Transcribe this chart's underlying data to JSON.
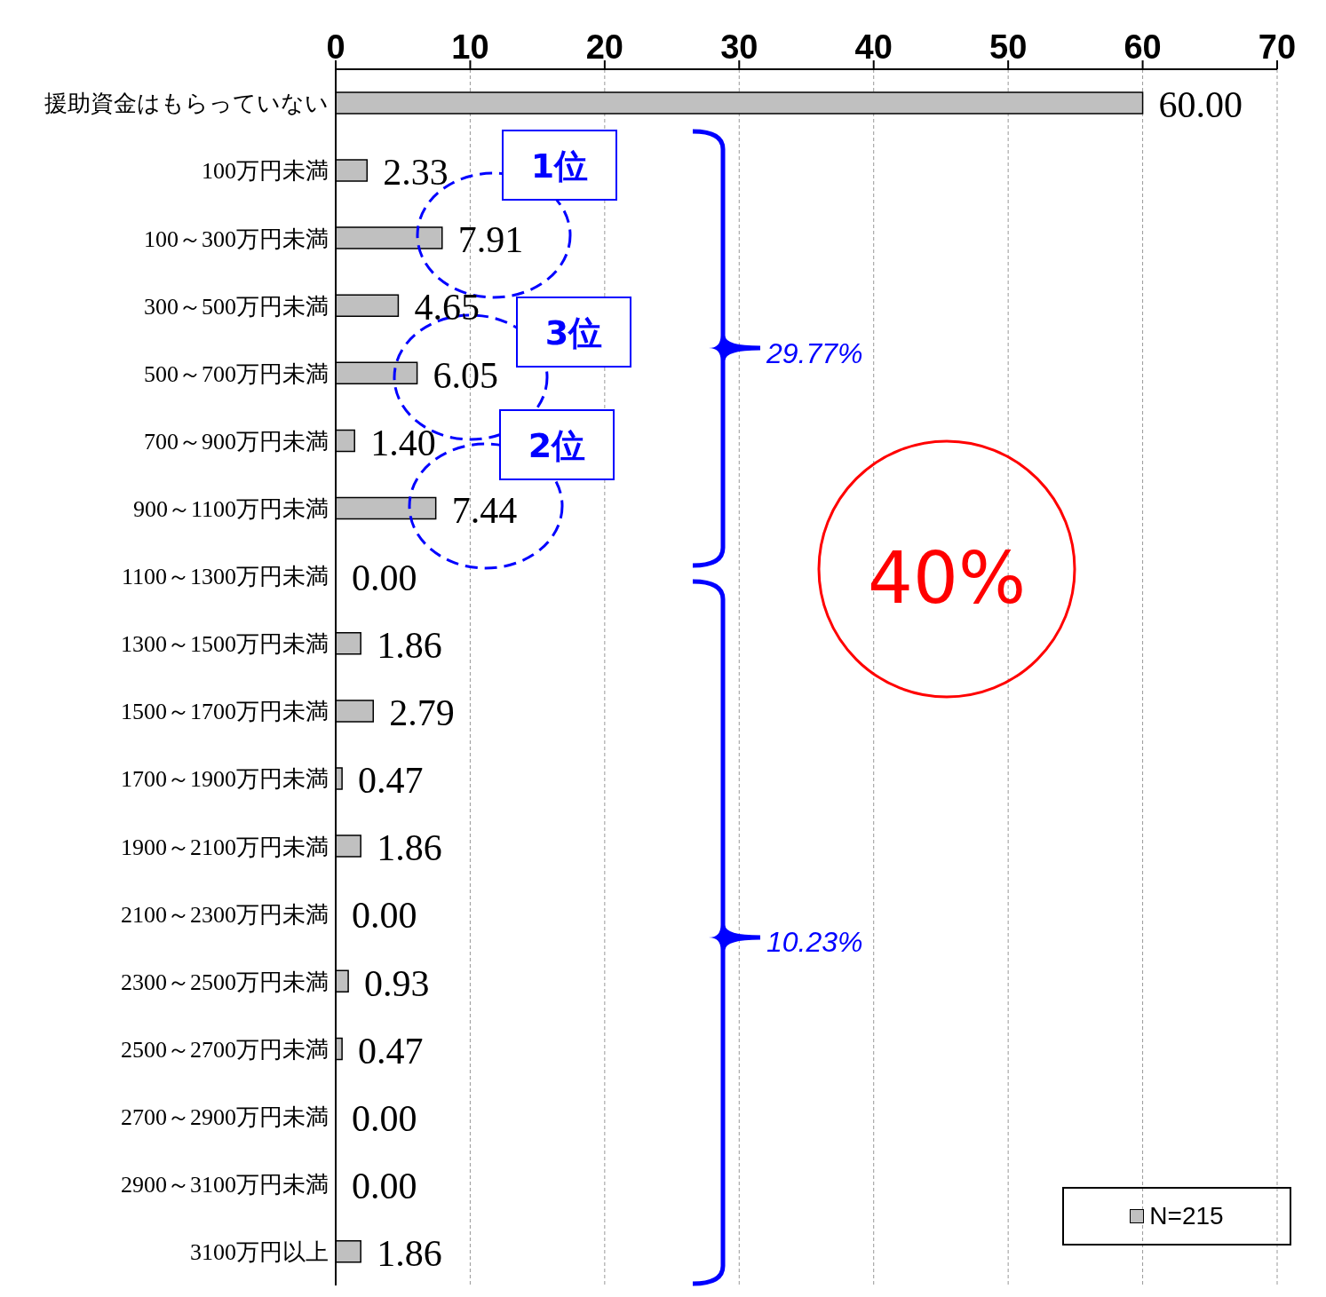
{
  "chart_data": {
    "type": "bar",
    "orientation": "horizontal",
    "categories": [
      "援助資金はもらっていない",
      "100万円未満",
      "100～300万円未満",
      "300～500万円未満",
      "500～700万円未満",
      "700～900万円未満",
      "900～1100万円未満",
      "1100～1300万円未満",
      "1300～1500万円未満",
      "1500～1700万円未満",
      "1700～1900万円未満",
      "1900～2100万円未満",
      "2100～2300万円未満",
      "2300～2500万円未満",
      "2500～2700万円未満",
      "2700～2900万円未満",
      "2900～3100万円未満",
      "3100万円以上"
    ],
    "series": [
      {
        "name": "N=215",
        "color": "#c0c0c0",
        "values": [
          60,
          2.33,
          7.91,
          4.65,
          6.05,
          1.4,
          7.44,
          0,
          1.86,
          2.79,
          0.47,
          1.86,
          0,
          0.93,
          0.47,
          0,
          0,
          1.86
        ],
        "value_labels": [
          "60.00",
          "2.33",
          "7.91",
          "4.65",
          "6.05",
          "1.40",
          "7.44",
          "0.00",
          "1.86",
          "2.79",
          "0.47",
          "1.86",
          "0.00",
          "0.93",
          "0.47",
          "0.00",
          "0.00",
          "1.86"
        ]
      }
    ],
    "xlim": [
      0,
      70
    ],
    "xticks": [
      0,
      10,
      20,
      30,
      40,
      50,
      60,
      70
    ],
    "grid": "x",
    "legend": "bottom right",
    "annotations": [
      "1位",
      "3位",
      "2位",
      "29.77%",
      "10.23%",
      "40%"
    ]
  }
}
